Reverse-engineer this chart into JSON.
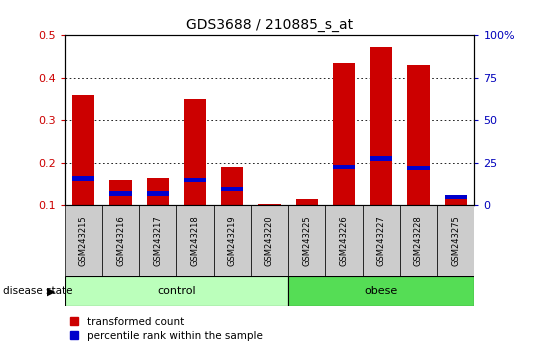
{
  "title": "GDS3688 / 210885_s_at",
  "samples": [
    "GSM243215",
    "GSM243216",
    "GSM243217",
    "GSM243218",
    "GSM243219",
    "GSM243220",
    "GSM243225",
    "GSM243226",
    "GSM243227",
    "GSM243228",
    "GSM243275"
  ],
  "red_values": [
    0.36,
    0.16,
    0.165,
    0.35,
    0.19,
    0.103,
    0.115,
    0.435,
    0.472,
    0.43,
    0.125
  ],
  "blue_values": [
    0.163,
    0.128,
    0.128,
    0.16,
    0.138,
    0.0,
    0.0,
    0.19,
    0.21,
    0.188,
    0.12
  ],
  "ylim": [
    0.1,
    0.5
  ],
  "yticks": [
    0.1,
    0.2,
    0.3,
    0.4,
    0.5
  ],
  "y2ticks": [
    0,
    25,
    50,
    75,
    100
  ],
  "y2labels": [
    "0",
    "25",
    "50",
    "75",
    "100%"
  ],
  "control_count": 6,
  "obese_count": 5,
  "group_label": "disease state",
  "bar_width": 0.6,
  "red_color": "#CC0000",
  "blue_color": "#0000CC",
  "tick_color_left": "#CC0000",
  "tick_color_right": "#0000BB",
  "legend_red": "transformed count",
  "legend_blue": "percentile rank within the sample",
  "bar_bottom": 0.1,
  "sample_box_color": "#CCCCCC",
  "control_color": "#BBFFBB",
  "obese_color": "#55DD55"
}
